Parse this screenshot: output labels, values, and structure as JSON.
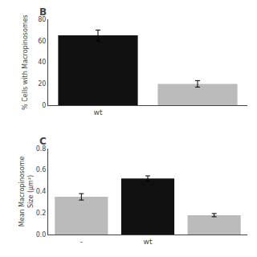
{
  "chart_data": [
    {
      "type": "bar",
      "title": "B",
      "categories": [
        "wt",
        null
      ],
      "values": [
        65,
        20
      ],
      "errors": [
        5,
        3
      ],
      "colors": [
        "#111111",
        "#bbbbbb"
      ],
      "ylabel": "% Cells with Macropinosomes",
      "ylim": [
        0,
        80
      ],
      "yticks": [
        0,
        20,
        40,
        60,
        80
      ],
      "grid": false
    },
    {
      "type": "bar",
      "title": "C",
      "categories": [
        "-",
        "wt",
        null
      ],
      "values": [
        0.35,
        0.52,
        0.18
      ],
      "errors": [
        0.03,
        0.025,
        0.015
      ],
      "colors": [
        "#bbbbbb",
        "#111111",
        "#bbbbbb"
      ],
      "ylabel": "Mean Macropinosome\nSize (μm²)",
      "ylim": [
        0.0,
        0.8
      ],
      "yticks": [
        {
          "value": 0.0,
          "label": "0.0"
        },
        0.2,
        0.4,
        0.6,
        0.8
      ],
      "grid": false
    }
  ]
}
